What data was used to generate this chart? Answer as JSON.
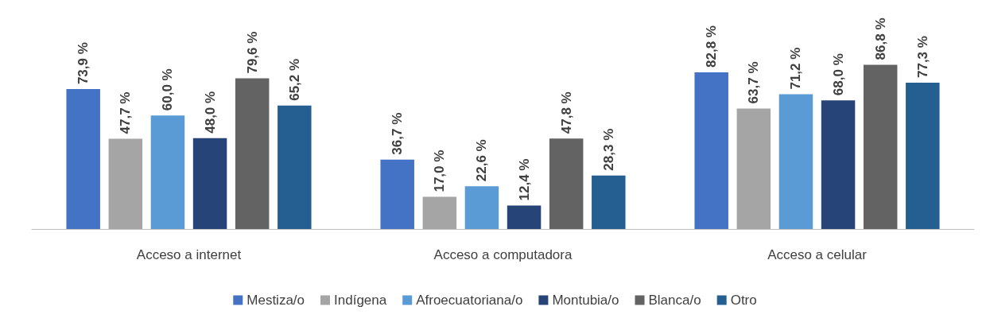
{
  "chart_data": {
    "type": "bar",
    "categories": [
      "Acceso a internet",
      "Acceso a computadora",
      "Acceso a celular"
    ],
    "legend": "bottom",
    "series": [
      {
        "name": "Mestiza/o",
        "color": "#4472c4",
        "values": [
          73.9,
          36.7,
          82.8
        ],
        "value_labels": [
          "73,9 %",
          "36,7 %",
          "82,8 %"
        ]
      },
      {
        "name": "Indígena",
        "color": "#a5a5a5",
        "values": [
          47.7,
          17.0,
          63.7
        ],
        "value_labels": [
          "47,7 %",
          "17,0 %",
          "63,7 %"
        ]
      },
      {
        "name": "Afroecuatoriana/o",
        "color": "#5b9bd5",
        "values": [
          60.0,
          22.6,
          71.2
        ],
        "value_labels": [
          "60,0 %",
          "22,6 %",
          "71,2 %"
        ]
      },
      {
        "name": "Montubia/o",
        "color": "#264478",
        "values": [
          48.0,
          12.4,
          68.0
        ],
        "value_labels": [
          "48,0 %",
          "12,4 %",
          "68,0 %"
        ]
      },
      {
        "name": "Blanca/o",
        "color": "#636363",
        "values": [
          79.6,
          47.8,
          86.8
        ],
        "value_labels": [
          "79,6 %",
          "47,8 %",
          "86,8 %"
        ]
      },
      {
        "name": "Otro",
        "color": "#255e91",
        "values": [
          65.2,
          28.3,
          77.3
        ],
        "value_labels": [
          "65,2 %",
          "28,3 %",
          "77,3 %"
        ]
      }
    ]
  }
}
